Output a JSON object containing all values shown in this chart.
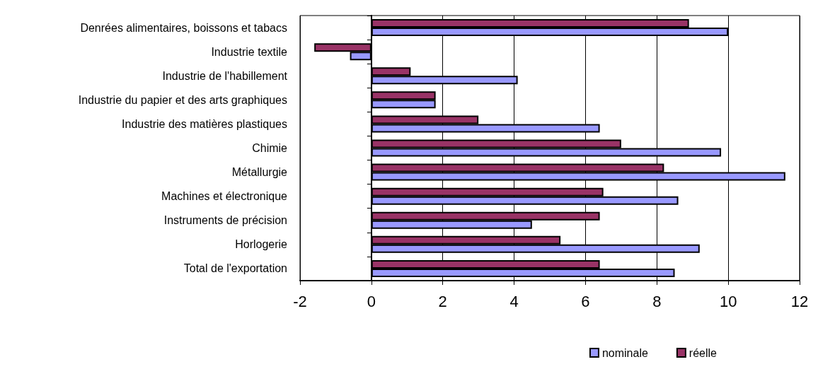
{
  "chart_data": {
    "type": "bar",
    "orientation": "horizontal",
    "categories": [
      "Denrées alimentaires, boissons et tabacs",
      "Industrie textile",
      "Industrie de l'habillement",
      "Industrie du papier et des arts graphiques",
      "Industrie des matières plastiques",
      "Chimie",
      "Métallurgie",
      "Machines et électronique",
      "Instruments de précision",
      "Horlogerie",
      "Total de l'exportation"
    ],
    "series": [
      {
        "name": "nominale",
        "color": "#9999ff",
        "values": [
          10.0,
          -0.6,
          4.1,
          1.8,
          6.4,
          9.8,
          11.6,
          8.6,
          4.5,
          9.2,
          8.5
        ]
      },
      {
        "name": "réelle",
        "color": "#993366",
        "values": [
          8.9,
          -1.6,
          1.1,
          1.8,
          3.0,
          7.0,
          8.2,
          6.5,
          6.4,
          5.3,
          6.4
        ]
      }
    ],
    "xlim": [
      -2,
      12
    ],
    "xticks": [
      -2,
      0,
      2,
      4,
      6,
      8,
      10,
      12
    ],
    "grid": "x",
    "legend": "bottom right"
  }
}
